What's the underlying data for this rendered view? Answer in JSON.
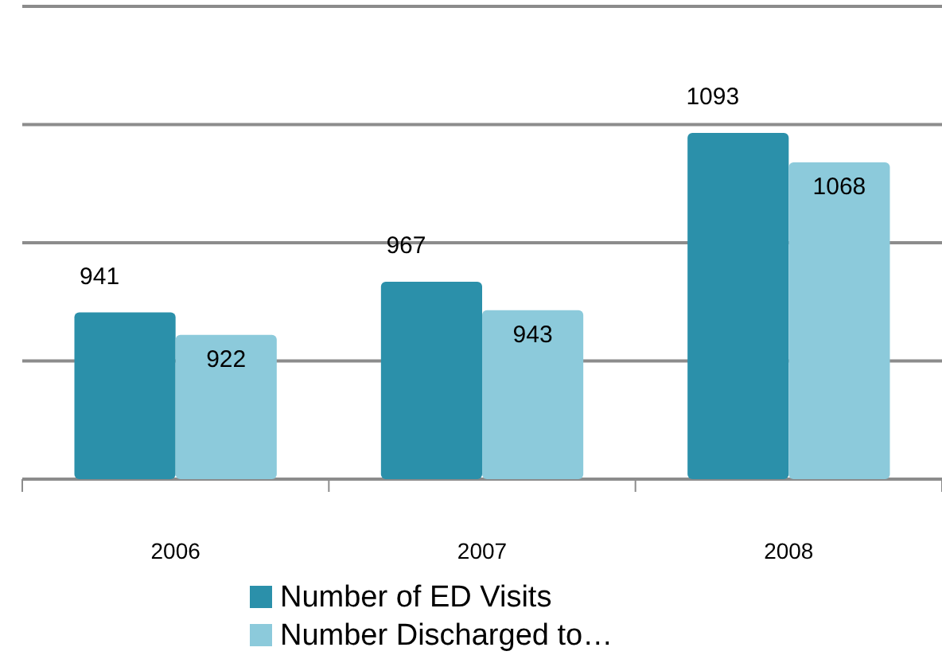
{
  "chart_data": {
    "type": "bar",
    "categories": [
      "2006",
      "2007",
      "2008"
    ],
    "series": [
      {
        "name": "Number of ED Visits",
        "color": "#2b90aa",
        "values": [
          941,
          967,
          1093
        ]
      },
      {
        "name": "Number Discharged to…",
        "color": "#8ccadb",
        "values": [
          922,
          943,
          1068
        ]
      }
    ],
    "ylim": [
      800,
      1200
    ],
    "yticks": [
      {
        "value": 800,
        "label": null
      },
      {
        "value": 900,
        "label": null
      },
      {
        "value": 1000,
        "label": null
      },
      {
        "value": 1100,
        "label": null
      },
      {
        "value": 1200,
        "label": null
      }
    ],
    "grid": "y",
    "tick_labels": "x",
    "data_labels": true,
    "legend": "bottom"
  }
}
